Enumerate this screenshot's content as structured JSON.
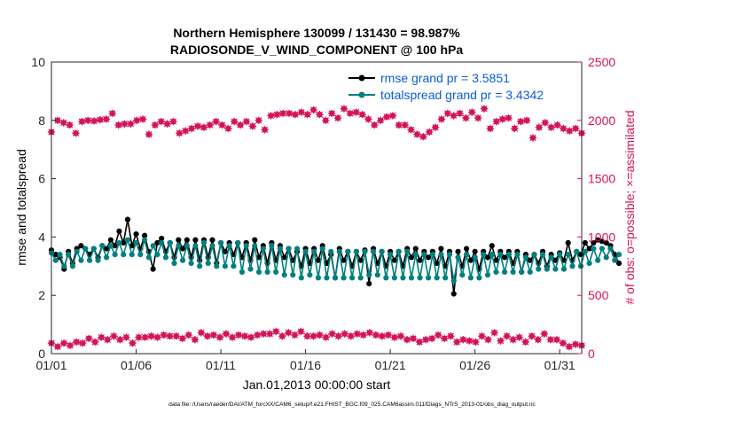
{
  "chart_data": {
    "type": "line",
    "title_line1": "Northern Hemisphere 130099 / 131430 = 98.987%",
    "title_line2": "RADIOSONDE_V_WIND_COMPONENT @ 100 hPa",
    "xlabel": "Jan.01,2013 00:00:00 start",
    "ylabel_left": "rmse and totalspread",
    "ylabel_right": "# of obs: o=possible; ×=assimilated",
    "footer": "data file: /Users/raeder/DAI/ATM_forcXX/CAM6_setup/f.e21.FHIST_BGC.f09_025.CAM6assim.011/Diags_NTrS_2013-01/obs_diag_output.nc",
    "xlim": [
      0,
      31.3
    ],
    "ylim_left": [
      0,
      10
    ],
    "ylim_right": [
      0,
      2500
    ],
    "x_ticks": [
      {
        "v": 0,
        "label": "01/01"
      },
      {
        "v": 5,
        "label": "01/06"
      },
      {
        "v": 10,
        "label": "01/11"
      },
      {
        "v": 15,
        "label": "01/16"
      },
      {
        "v": 20,
        "label": "01/21"
      },
      {
        "v": 25,
        "label": "01/26"
      },
      {
        "v": 30,
        "label": "01/31"
      }
    ],
    "y_ticks_left": [
      0,
      2,
      4,
      6,
      8,
      10
    ],
    "y_ticks_right": [
      0,
      500,
      1000,
      1500,
      2000,
      2500
    ],
    "legend": [
      {
        "label": "rmse grand pr = 3.5851",
        "color": "#000000"
      },
      {
        "label": "totalspread grand pr = 3.4342",
        "color": "#008080"
      }
    ],
    "colors": {
      "rmse": "#000000",
      "spread": "#008080",
      "obs": "#d4145a",
      "legend_text": "#0a5cd6",
      "axis": "#262626"
    },
    "step_days": 0.25,
    "series": [
      {
        "name": "rmse",
        "values": [
          3.55,
          3.4,
          3.3,
          2.9,
          3.5,
          3.1,
          3.6,
          3.7,
          3.6,
          3.4,
          3.6,
          3.3,
          3.7,
          3.6,
          3.9,
          3.7,
          4.2,
          3.8,
          4.6,
          3.7,
          4.1,
          3.6,
          4.05,
          3.5,
          2.9,
          3.8,
          3.95,
          3.5,
          3.8,
          3.3,
          3.9,
          3.6,
          3.9,
          3.3,
          3.9,
          3.2,
          3.9,
          3.3,
          3.9,
          3.1,
          3.8,
          3.5,
          3.8,
          3.4,
          3.8,
          3.3,
          3.8,
          3.2,
          3.9,
          3.3,
          3.7,
          3.1,
          3.8,
          3.2,
          3.7,
          3.3,
          3.6,
          3.2,
          3.5,
          3.0,
          3.6,
          3.1,
          3.6,
          3.2,
          3.7,
          3.1,
          3.4,
          2.6,
          3.6,
          3.2,
          3.5,
          3.0,
          3.5,
          3.2,
          3.55,
          2.4,
          3.6,
          3.1,
          3.5,
          3.0,
          3.5,
          3.2,
          3.5,
          3.0,
          3.6,
          3.3,
          3.6,
          3.2,
          3.5,
          3.3,
          3.5,
          3.1,
          3.6,
          3.0,
          3.5,
          2.05,
          3.5,
          3.0,
          3.6,
          3.2,
          3.5,
          2.9,
          3.5,
          3.3,
          3.7,
          3.2,
          3.5,
          3.3,
          3.5,
          3.1,
          3.5,
          2.8,
          3.4,
          3.2,
          3.4,
          3.1,
          3.5,
          3.0,
          3.4,
          3.2,
          3.45,
          3.2,
          3.8,
          3.2,
          3.5,
          3.4,
          3.8,
          3.6,
          3.8,
          3.9,
          3.85,
          3.8,
          3.7,
          3.4,
          3.1
        ]
      },
      {
        "name": "totalspread",
        "values": [
          3.45,
          3.2,
          3.4,
          3.0,
          3.4,
          3.0,
          3.5,
          3.2,
          3.6,
          3.2,
          3.6,
          3.2,
          3.7,
          3.3,
          3.7,
          3.4,
          3.8,
          3.4,
          3.9,
          3.4,
          3.8,
          3.4,
          3.9,
          3.3,
          3.7,
          3.4,
          3.8,
          3.3,
          3.8,
          3.1,
          3.7,
          3.2,
          3.7,
          3.1,
          3.7,
          3.0,
          3.8,
          3.1,
          3.7,
          3.0,
          3.8,
          3.0,
          3.7,
          3.0,
          3.8,
          2.8,
          3.7,
          2.9,
          3.7,
          2.8,
          3.6,
          2.8,
          3.7,
          2.8,
          3.6,
          2.7,
          3.6,
          2.7,
          3.6,
          2.6,
          3.5,
          2.7,
          3.5,
          2.6,
          3.6,
          2.6,
          3.5,
          2.6,
          3.5,
          2.6,
          3.5,
          2.6,
          3.5,
          2.6,
          3.5,
          2.7,
          3.5,
          2.7,
          3.5,
          2.6,
          3.4,
          2.6,
          3.5,
          2.6,
          3.5,
          2.6,
          3.4,
          2.6,
          3.4,
          2.6,
          3.4,
          2.6,
          3.4,
          2.6,
          3.4,
          2.5,
          3.3,
          2.7,
          3.4,
          2.6,
          3.3,
          2.6,
          3.4,
          2.7,
          3.4,
          2.8,
          3.4,
          2.8,
          3.4,
          2.8,
          3.4,
          2.8,
          3.3,
          2.8,
          3.4,
          2.9,
          3.4,
          2.9,
          3.3,
          2.9,
          3.4,
          2.9,
          3.4,
          3.0,
          3.5,
          3.0,
          3.5,
          3.1,
          3.6,
          3.2,
          3.6,
          3.3,
          3.6,
          3.2,
          3.4
        ]
      },
      {
        "name": "possible",
        "values": [
          1900,
          2000,
          1980,
          1960,
          1890,
          1990,
          2000,
          1995,
          2005,
          2010,
          2060,
          1960,
          1970,
          1970,
          2000,
          2010,
          1880,
          1960,
          1990,
          1970,
          1990,
          1890,
          1910,
          1930,
          1950,
          1940,
          1960,
          1990,
          1960,
          1930,
          1990,
          1960,
          1990,
          1950,
          2000,
          1920,
          2040,
          2050,
          2060,
          2060,
          2050,
          2070,
          2050,
          2090,
          2050,
          2000,
          2060,
          2020,
          2100,
          2060,
          2070,
          2050,
          2010,
          1960,
          2000,
          2030,
          2040,
          1960,
          1960,
          1920,
          1880,
          1860,
          1900,
          1940,
          2010,
          2060,
          2040,
          2060,
          2020,
          2070,
          2020,
          2100,
          1930,
          1990,
          2010,
          2020,
          1930,
          1990,
          2000,
          1850,
          1940,
          1980,
          1940,
          1960,
          1930,
          1910,
          1930,
          1890
        ]
      },
      {
        "name": "assimilated",
        "values": [
          90,
          60,
          90,
          70,
          100,
          90,
          130,
          100,
          140,
          120,
          150,
          120,
          140,
          90,
          140,
          140,
          150,
          140,
          160,
          150,
          150,
          130,
          160,
          120,
          180,
          150,
          160,
          140,
          170,
          140,
          160,
          150,
          140,
          160,
          170,
          170,
          190,
          150,
          180,
          160,
          190,
          150,
          150,
          160,
          140,
          170,
          150,
          170,
          150,
          170,
          160,
          180,
          160,
          150,
          160,
          140,
          150,
          120,
          130,
          100,
          120,
          130,
          160,
          130,
          150,
          100,
          120,
          110,
          100,
          150,
          120,
          180,
          110,
          150,
          120,
          140,
          100,
          150,
          120,
          170,
          120,
          120,
          90,
          60,
          80,
          70
        ]
      }
    ]
  }
}
